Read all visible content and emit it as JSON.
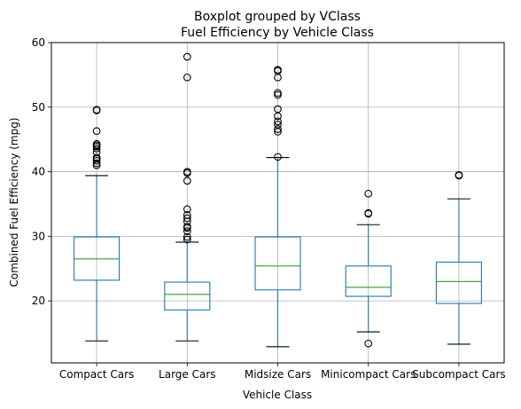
{
  "chart_data": {
    "type": "boxplot",
    "suptitle": "Boxplot grouped by VClass",
    "title": "Fuel Efficiency by Vehicle Class",
    "xlabel": "Vehicle Class",
    "ylabel": "Combined Fuel Efficiency (mpg)",
    "ylim": [
      10.4,
      60
    ],
    "yticks": [
      20,
      30,
      40,
      50,
      60
    ],
    "grid": true,
    "colors": {
      "box": "#1f77b4",
      "median": "#2ca02c",
      "cap": "#000000",
      "grid": "#b0b0b0",
      "flier": "#000000"
    },
    "categories": [
      "Compact Cars",
      "Large Cars",
      "Midsize Cars",
      "Minicompact Cars",
      "Subcompact Cars"
    ],
    "boxes": [
      {
        "whislo": 13.8,
        "q1": 23.2,
        "med": 26.5,
        "q3": 29.9,
        "whishi": 39.4,
        "fliers": [
          41.0,
          41.3,
          41.7,
          42.0,
          42.2,
          43.0,
          43.6,
          43.9,
          44.1,
          44.3,
          46.3,
          49.5,
          49.6
        ]
      },
      {
        "whislo": 13.8,
        "q1": 18.6,
        "med": 21.0,
        "q3": 22.9,
        "whishi": 29.1,
        "fliers": [
          29.5,
          29.9,
          30.8,
          31.3,
          31.5,
          32.3,
          32.8,
          33.3,
          34.2,
          38.6,
          39.8,
          40.0,
          54.6,
          57.8
        ]
      },
      {
        "whislo": 12.9,
        "q1": 21.7,
        "med": 25.4,
        "q3": 29.9,
        "whishi": 42.2,
        "fliers": [
          42.3,
          46.2,
          46.6,
          47.3,
          47.8,
          48.6,
          49.7,
          51.9,
          52.2,
          54.6,
          55.6,
          55.8
        ]
      },
      {
        "whislo": 15.2,
        "q1": 20.7,
        "med": 22.1,
        "q3": 25.4,
        "whishi": 31.8,
        "fliers": [
          13.4,
          33.5,
          33.6,
          36.6
        ]
      },
      {
        "whislo": 13.3,
        "q1": 19.6,
        "med": 23.0,
        "q3": 26.0,
        "whishi": 35.8,
        "fliers": [
          39.4,
          39.5
        ]
      }
    ]
  }
}
